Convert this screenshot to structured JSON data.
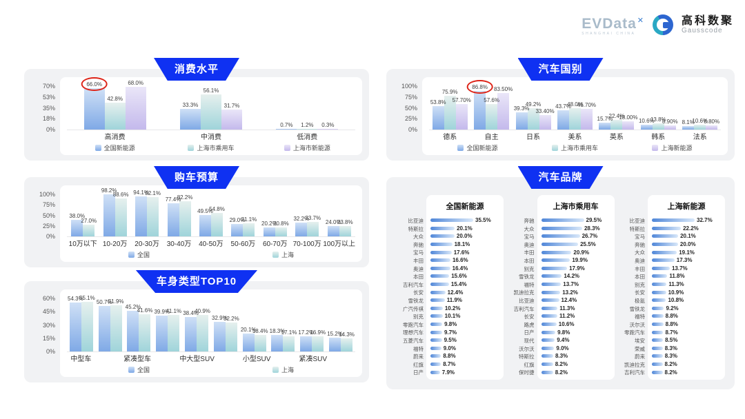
{
  "header": {
    "evdata_logo": "EVData",
    "evdata_x": "✕",
    "evdata_sub": "SHANGHAI CHINA",
    "gausscode_cn": "高科数聚",
    "gausscode_en": "Gausscode"
  },
  "colors": {
    "banner_blue": "#0f31f2",
    "annotation_red": "#dd2418",
    "blue_top": "#cfe0f6",
    "blue_bottom": "#7fa9e6",
    "teal_top": "#e6f0ee",
    "teal_bottom": "#9fd4da",
    "purple_top": "#eae6f8",
    "purple_bottom": "#c4b9ec",
    "hbar_left": "#4f86d8",
    "hbar_right": "#d9e8f9"
  },
  "chart_data": [
    {
      "id": "consumption",
      "type": "bar",
      "title": "消费水平",
      "y_ticks": [
        "70%",
        "53%",
        "35%",
        "18%",
        "0%"
      ],
      "ylim": [
        0,
        70
      ],
      "grid": false,
      "legend_position": "bottom",
      "categories": [
        "高消费",
        "中消费",
        "低消费"
      ],
      "series": [
        {
          "name": "全国新能源",
          "color": "blue",
          "values": [
            66.0,
            33.3,
            0.7
          ],
          "labels": [
            "66.0%",
            "33.3%",
            "0.7%"
          ]
        },
        {
          "name": "上海市乘用车",
          "color": "teal",
          "values": [
            42.8,
            56.1,
            1.2
          ],
          "labels": [
            "42.8%",
            "56.1%",
            "1.2%"
          ]
        },
        {
          "name": "上海市新能源",
          "color": "purple",
          "values": [
            68.0,
            31.7,
            0.3
          ],
          "labels": [
            "68.0%",
            "31.7%",
            "0.3%"
          ]
        }
      ],
      "annotation": {
        "type": "red-circle",
        "series": 0,
        "category": 0,
        "label": "66.0%"
      }
    },
    {
      "id": "budget",
      "type": "bar",
      "title": "购车预算",
      "y_ticks": [
        "100%",
        "75%",
        "50%",
        "25%",
        "0%"
      ],
      "ylim": [
        0,
        100
      ],
      "grid": false,
      "legend_position": "bottom",
      "categories": [
        "10万以下",
        "10-20万",
        "20-30万",
        "30-40万",
        "40-50万",
        "50-60万",
        "60-70万",
        "70-100万",
        "100万以上"
      ],
      "series": [
        {
          "name": "全国",
          "color": "blue",
          "values": [
            38.0,
            98.2,
            94.1,
            77.4,
            49.5,
            29.0,
            20.2,
            32.2,
            24.0
          ],
          "labels": [
            "38.0%",
            "98.2%",
            "94.1%",
            "77.4%",
            "49.5%",
            "29.0%",
            "20.2%",
            "32.2%",
            "24.0%"
          ]
        },
        {
          "name": "上海",
          "color": "teal",
          "values": [
            27.0,
            88.6,
            92.1,
            82.2,
            54.8,
            31.1,
            20.8,
            33.7,
            23.8
          ],
          "labels": [
            "27.0%",
            "88.6%",
            "92.1%",
            "82.2%",
            "54.8%",
            "31.1%",
            "20.8%",
            "33.7%",
            "23.8%"
          ]
        }
      ]
    },
    {
      "id": "bodytype",
      "type": "bar",
      "title": "车身类型TOP10",
      "y_ticks": [
        "60%",
        "45%",
        "30%",
        "15%",
        "0%"
      ],
      "ylim": [
        0,
        60
      ],
      "grid": false,
      "legend_position": "bottom",
      "categories": [
        "中型车",
        "",
        "紧凑型车",
        "",
        "中大型SUV",
        "",
        "小型SUV",
        "",
        "紧凑SUV",
        ""
      ],
      "series": [
        {
          "name": "全国",
          "color": "blue",
          "values": [
            54.3,
            50.7,
            45.2,
            39.9,
            38.4,
            32.9,
            20.1,
            18.3,
            17.2,
            15.2
          ],
          "labels": [
            "54.3%",
            "50.7%",
            "45.2%",
            "39.9%",
            "38.4%",
            "32.9%",
            "20.1%",
            "18.3%",
            "17.2%",
            "15.2%"
          ]
        },
        {
          "name": "上海",
          "color": "teal",
          "values": [
            55.1,
            51.9,
            41.6,
            41.1,
            40.9,
            32.2,
            18.4,
            17.1,
            16.9,
            14.3
          ],
          "labels": [
            "55.1%",
            "51.9%",
            "41.6%",
            "41.1%",
            "40.9%",
            "32.2%",
            "18.4%",
            "17.1%",
            "16.9%",
            "14.3%"
          ]
        }
      ]
    },
    {
      "id": "country",
      "type": "bar",
      "title": "汽车国别",
      "y_ticks": [
        "100%",
        "75%",
        "50%",
        "25%",
        "0%"
      ],
      "ylim": [
        0,
        100
      ],
      "grid": false,
      "legend_position": "bottom",
      "categories": [
        "德系",
        "自主",
        "日系",
        "美系",
        "英系",
        "韩系",
        "法系"
      ],
      "series": [
        {
          "name": "全国新能源",
          "color": "blue",
          "values": [
            53.8,
            86.8,
            39.3,
            43.7,
            15.7,
            10.6,
            8.1
          ],
          "labels": [
            "53.8%",
            "86.8%",
            "39.3%",
            "43.7%",
            "15.7%",
            "10.6%",
            "8.1%"
          ]
        },
        {
          "name": "上海市乘用车",
          "color": "teal",
          "values": [
            75.9,
            57.6,
            49.2,
            48.0,
            22.4,
            13.8,
            10.6
          ],
          "labels": [
            "75.9%",
            "57.6%",
            "49.2%",
            "48.0%",
            "22.4%",
            "13.8%",
            "10.6%"
          ]
        },
        {
          "name": "上海新能源",
          "color": "purple",
          "values": [
            57.7,
            83.5,
            33.4,
            46.7,
            18.0,
            8.9,
            8.8
          ],
          "labels": [
            "57.70%",
            "83.50%",
            "33.40%",
            "46.70%",
            "18.00%",
            "8.90%",
            "8.80%"
          ]
        }
      ],
      "annotation": {
        "type": "red-circle",
        "series": 0,
        "category": 1,
        "label": "86.8%"
      }
    },
    {
      "id": "brands",
      "type": "hbar-list",
      "title": "汽车品牌",
      "panels": [
        {
          "title": "全国新能源",
          "items": [
            [
              "比亚迪",
              35.5
            ],
            [
              "特斯拉",
              20.1
            ],
            [
              "大众",
              20.0
            ],
            [
              "奔驰",
              18.1
            ],
            [
              "宝马",
              17.6
            ],
            [
              "丰田",
              16.6
            ],
            [
              "奥迪",
              16.4
            ],
            [
              "本田",
              15.6
            ],
            [
              "吉利汽车",
              15.4
            ],
            [
              "长安",
              12.4
            ],
            [
              "雪铁龙",
              11.9
            ],
            [
              "广汽传祺",
              10.2
            ],
            [
              "别克",
              10.1
            ],
            [
              "零跑汽车",
              9.8
            ],
            [
              "理想汽车",
              9.7
            ],
            [
              "五菱汽车",
              9.5
            ],
            [
              "福特",
              9.0
            ],
            [
              "蔚来",
              8.8
            ],
            [
              "红旗",
              8.7
            ],
            [
              "日产",
              7.9
            ]
          ]
        },
        {
          "title": "上海市乘用车",
          "items": [
            [
              "奔驰",
              29.5
            ],
            [
              "大众",
              28.3
            ],
            [
              "宝马",
              26.7
            ],
            [
              "奥迪",
              25.5
            ],
            [
              "丰田",
              20.9
            ],
            [
              "本田",
              19.9
            ],
            [
              "别克",
              17.9
            ],
            [
              "雪铁龙",
              14.2
            ],
            [
              "福特",
              13.7
            ],
            [
              "凯迪拉克",
              13.2
            ],
            [
              "比亚迪",
              12.4
            ],
            [
              "吉利汽车",
              11.3
            ],
            [
              "长安",
              11.2
            ],
            [
              "路虎",
              10.6
            ],
            [
              "日产",
              9.8
            ],
            [
              "现代",
              9.4
            ],
            [
              "沃尔沃",
              9.0
            ],
            [
              "特斯拉",
              8.3
            ],
            [
              "红旗",
              8.2
            ],
            [
              "保时捷",
              8.2
            ]
          ]
        },
        {
          "title": "上海新能源",
          "items": [
            [
              "比亚迪",
              32.7
            ],
            [
              "特斯拉",
              22.2
            ],
            [
              "宝马",
              20.1
            ],
            [
              "奔驰",
              20.0
            ],
            [
              "大众",
              19.1
            ],
            [
              "奥迪",
              17.3
            ],
            [
              "丰田",
              13.7
            ],
            [
              "本田",
              11.8
            ],
            [
              "别克",
              11.3
            ],
            [
              "长安",
              10.9
            ],
            [
              "极氪",
              10.8
            ],
            [
              "雪铁龙",
              9.2
            ],
            [
              "福特",
              8.8
            ],
            [
              "沃尔沃",
              8.8
            ],
            [
              "零跑汽车",
              8.7
            ],
            [
              "埃安",
              8.5
            ],
            [
              "荣威",
              8.3
            ],
            [
              "蔚来",
              8.3
            ],
            [
              "凯迪拉克",
              8.2
            ],
            [
              "吉利汽车",
              8.2
            ]
          ]
        }
      ]
    }
  ]
}
